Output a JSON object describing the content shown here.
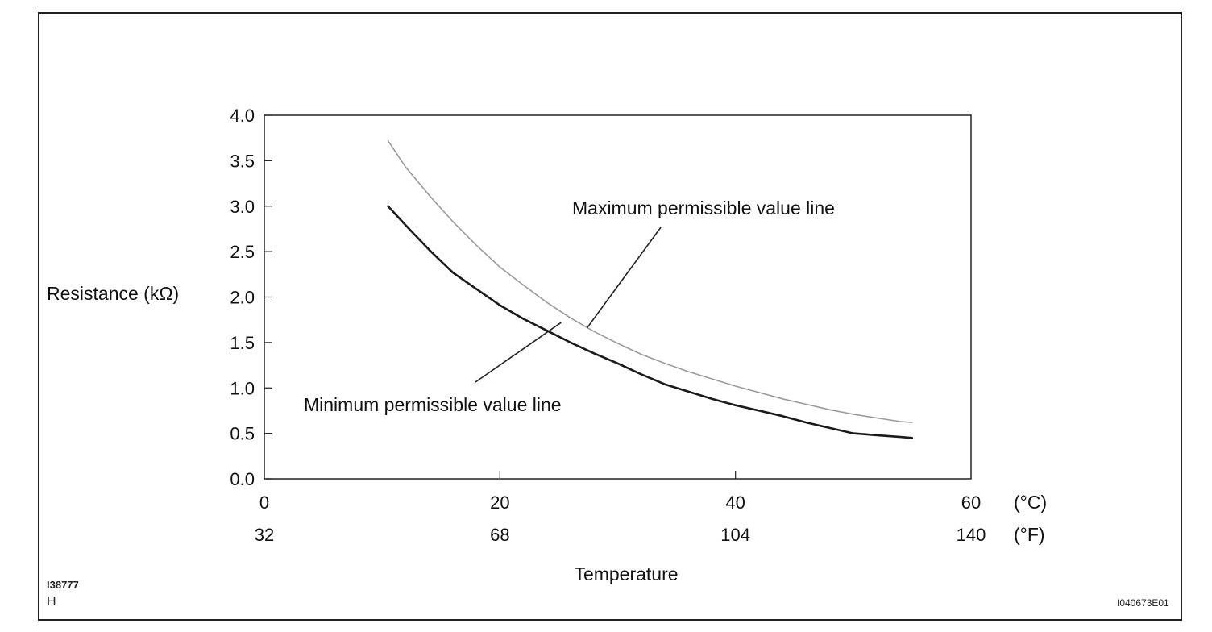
{
  "chart_data": {
    "type": "line",
    "ylabel": "Resistance (kΩ)",
    "xlabel": "Temperature",
    "x_unit_c": "(°C)",
    "x_unit_f": "(°F)",
    "x_ticks_c": [
      "0",
      "20",
      "40",
      "60"
    ],
    "x_ticks_f": [
      "32",
      "68",
      "104",
      "140"
    ],
    "y_ticks": [
      "0.0",
      "0.5",
      "1.0",
      "1.5",
      "2.0",
      "2.5",
      "3.0",
      "3.5",
      "4.0"
    ],
    "xlim": [
      0,
      60
    ],
    "ylim": [
      0,
      4.0
    ],
    "grid": false,
    "series": [
      {
        "name": "Maximum permissible value line",
        "color": "#9a9a9a",
        "x": [
          10.5,
          12,
          14,
          16,
          18,
          20,
          22,
          24,
          26,
          28,
          30,
          32,
          34,
          36,
          38,
          40,
          42,
          44,
          46,
          48,
          50,
          52,
          54,
          55
        ],
        "y": [
          3.72,
          3.43,
          3.12,
          2.83,
          2.57,
          2.33,
          2.13,
          1.94,
          1.77,
          1.62,
          1.49,
          1.37,
          1.27,
          1.18,
          1.1,
          1.02,
          0.95,
          0.88,
          0.82,
          0.76,
          0.71,
          0.67,
          0.63,
          0.62
        ]
      },
      {
        "name": "Minimum permissible value line",
        "color": "#1a1a1a",
        "x": [
          10.5,
          12,
          14,
          16,
          18,
          20,
          22,
          24,
          26,
          28,
          30,
          32,
          34,
          36,
          38,
          40,
          42,
          44,
          46,
          48,
          50,
          52,
          54,
          55
        ],
        "y": [
          3.0,
          2.79,
          2.52,
          2.27,
          2.09,
          1.91,
          1.76,
          1.63,
          1.5,
          1.38,
          1.27,
          1.15,
          1.04,
          0.96,
          0.88,
          0.81,
          0.75,
          0.69,
          0.62,
          0.56,
          0.5,
          0.48,
          0.46,
          0.45
        ]
      }
    ]
  },
  "codes": {
    "figure_left": "I38777",
    "figure_left_sub": "H",
    "figure_right": "I040673E01"
  }
}
